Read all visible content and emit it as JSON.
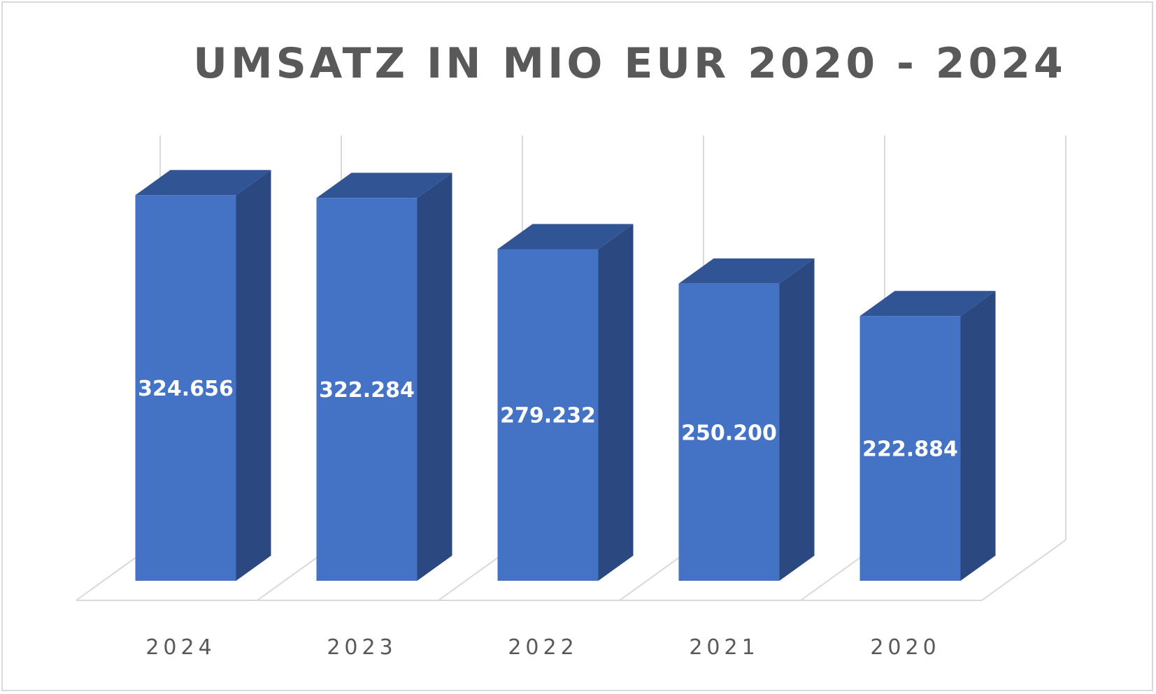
{
  "chart_data": {
    "type": "bar",
    "title": "UMSATZ IN MIO EUR 2020 - 2024",
    "xlabel": "",
    "ylabel": "",
    "categories": [
      "2024",
      "2023",
      "2022",
      "2021",
      "2020"
    ],
    "series": [
      {
        "values": [
          324.656,
          322.284,
          279.232,
          250.2,
          222.884
        ],
        "value_labels": [
          "324.656",
          "322.284",
          "279.232",
          "250.200",
          "222.884"
        ],
        "color": "#4472C4",
        "side_color": "#2B4880",
        "top_color": "#315494"
      }
    ],
    "ylim": [
      0,
      350
    ],
    "grid": true,
    "legend": "none",
    "style": "3d-column",
    "gridline_color": "#D9D9D9",
    "title_color": "#595959",
    "label_color": "#595959"
  }
}
